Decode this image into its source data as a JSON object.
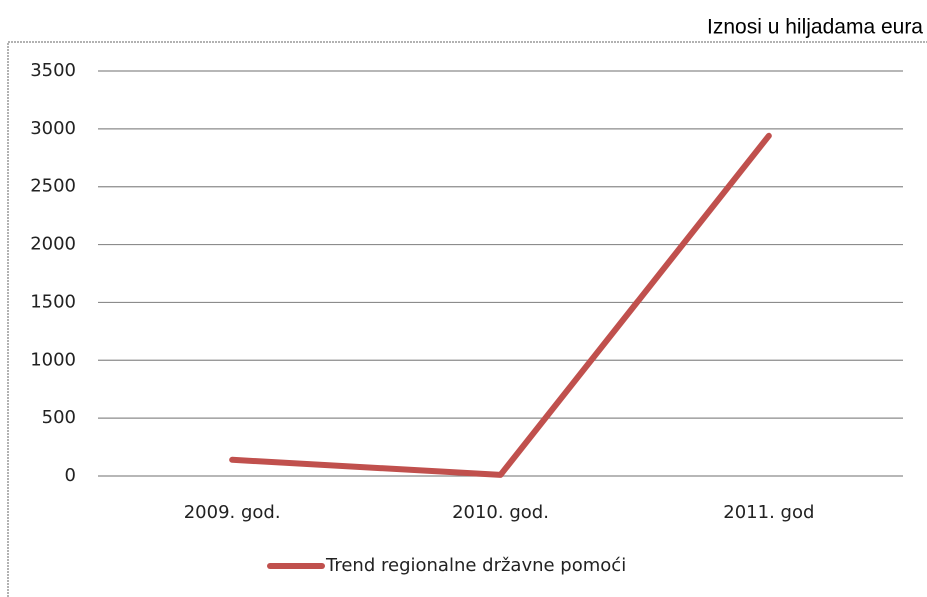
{
  "chart_data": {
    "type": "line",
    "annotation": "Iznosi u hiljadama eura",
    "categories": [
      "2009. god.",
      "2010. god.",
      "2011. god"
    ],
    "series": [
      {
        "name": "Trend regionalne državne pomoći",
        "color": "#c0504d",
        "values": [
          140,
          10,
          2940
        ]
      }
    ],
    "ylim": [
      0,
      3500
    ],
    "yticks": [
      0,
      500,
      1000,
      1500,
      2000,
      2500,
      3000,
      3500
    ],
    "grid": true,
    "legend": "bottom"
  }
}
